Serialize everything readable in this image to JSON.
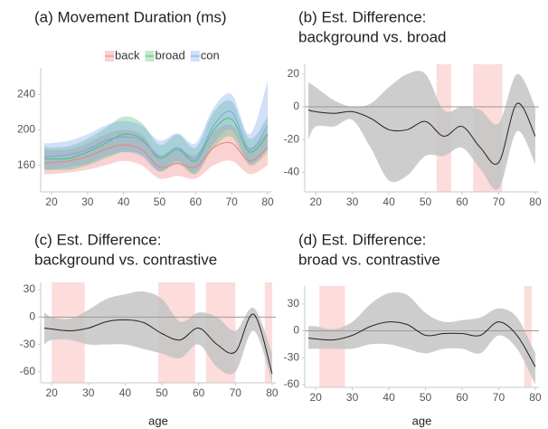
{
  "chart_data": [
    {
      "type": "line",
      "title": [
        "(a) Movement Duration (ms)"
      ],
      "legend": "top",
      "x": [
        18,
        20,
        25,
        30,
        35,
        40,
        45,
        50,
        55,
        60,
        65,
        70,
        75,
        80
      ],
      "xlim": [
        17,
        81
      ],
      "xticks": [
        20,
        30,
        40,
        50,
        60,
        70,
        80
      ],
      "ylim": [
        130,
        270
      ],
      "yticks": [
        160,
        200,
        240
      ],
      "series": [
        {
          "name": "back",
          "color": "#f07f7f",
          "values": [
            163,
            163,
            165,
            170,
            178,
            183,
            178,
            158,
            162,
            158,
            180,
            185,
            165,
            180
          ],
          "lower": [
            150,
            150,
            152,
            155,
            160,
            165,
            160,
            145,
            148,
            145,
            160,
            165,
            150,
            160
          ],
          "upper": [
            178,
            177,
            178,
            185,
            195,
            200,
            195,
            172,
            178,
            172,
            198,
            205,
            180,
            200
          ]
        },
        {
          "name": "broad",
          "color": "#4cbf73",
          "values": [
            168,
            167,
            168,
            175,
            185,
            195,
            190,
            168,
            178,
            165,
            200,
            212,
            175,
            195
          ],
          "lower": [
            155,
            155,
            155,
            160,
            168,
            175,
            172,
            153,
            162,
            150,
            180,
            192,
            160,
            175
          ],
          "upper": [
            182,
            180,
            182,
            190,
            202,
            215,
            208,
            183,
            195,
            180,
            220,
            232,
            190,
            215
          ]
        },
        {
          "name": "con",
          "color": "#7ba3ee",
          "values": [
            170,
            170,
            172,
            178,
            188,
            192,
            188,
            170,
            180,
            168,
            205,
            220,
            178,
            205
          ],
          "lower": [
            155,
            155,
            158,
            162,
            170,
            175,
            170,
            153,
            165,
            152,
            185,
            200,
            162,
            180
          ],
          "upper": [
            185,
            185,
            188,
            195,
            205,
            210,
            205,
            188,
            196,
            185,
            225,
            240,
            195,
            255
          ]
        }
      ]
    },
    {
      "type": "line",
      "title": [
        "(b) Est. Difference:",
        "background vs. broad"
      ],
      "x": [
        18,
        20,
        25,
        30,
        35,
        40,
        45,
        50,
        55,
        60,
        65,
        70,
        75,
        80
      ],
      "xlim": [
        17,
        81
      ],
      "xticks": [
        20,
        30,
        40,
        50,
        60,
        70,
        80
      ],
      "ylim": [
        -52,
        26
      ],
      "yticks": [
        20,
        0,
        -20,
        -40
      ],
      "hline": 0,
      "highlight_spans": [
        [
          53,
          57
        ],
        [
          63,
          71
        ]
      ],
      "highlight_color": "#fddcdc",
      "band_color": "#c4c4c4",
      "series": [
        {
          "color": "#222222",
          "values": [
            -2,
            -3,
            -4,
            -3,
            -7,
            -14,
            -14,
            -9,
            -18,
            -12,
            -25,
            -34,
            2,
            -18
          ],
          "lower": [
            -20,
            -12,
            -12,
            -8,
            -25,
            -45,
            -42,
            -30,
            -30,
            -25,
            -38,
            -50,
            -15,
            -35
          ],
          "upper": [
            15,
            12,
            4,
            0,
            2,
            12,
            20,
            20,
            -2,
            0,
            -2,
            -10,
            20,
            0
          ]
        }
      ]
    },
    {
      "type": "line",
      "title": [
        "(c) Est. Difference:",
        "background vs. contrastive"
      ],
      "xlabel": "age",
      "x": [
        18,
        20,
        25,
        30,
        35,
        40,
        45,
        50,
        55,
        60,
        65,
        70,
        75,
        80
      ],
      "xlim": [
        17,
        81
      ],
      "xticks": [
        20,
        30,
        40,
        50,
        60,
        70,
        80
      ],
      "ylim": [
        -72,
        38
      ],
      "yticks": [
        30,
        0,
        -30,
        -60
      ],
      "hline": 0,
      "highlight_spans": [
        [
          20,
          29
        ],
        [
          49,
          59
        ],
        [
          62,
          70
        ],
        [
          78,
          80
        ]
      ],
      "highlight_color": "#fddcdc",
      "band_color": "#c4c4c4",
      "series": [
        {
          "color": "#222222",
          "values": [
            -12,
            -13,
            -15,
            -12,
            -5,
            -3,
            -6,
            -18,
            -25,
            -12,
            -30,
            -38,
            3,
            -62
          ],
          "lower": [
            -30,
            -25,
            -25,
            -30,
            -30,
            -30,
            -35,
            -40,
            -45,
            -30,
            -55,
            -60,
            -15,
            -72
          ],
          "upper": [
            5,
            0,
            -2,
            8,
            20,
            25,
            28,
            20,
            -5,
            5,
            0,
            -15,
            10,
            -40
          ]
        }
      ]
    },
    {
      "type": "line",
      "title": [
        "(d) Est. Difference:",
        "broad vs. contrastive"
      ],
      "xlabel": "age",
      "x": [
        18,
        20,
        25,
        30,
        35,
        40,
        45,
        50,
        55,
        60,
        65,
        70,
        75,
        80
      ],
      "xlim": [
        17,
        81
      ],
      "xticks": [
        20,
        30,
        40,
        50,
        60,
        70,
        80
      ],
      "ylim": [
        -63,
        50
      ],
      "yticks": [
        30,
        0,
        -30,
        -60
      ],
      "hline": 0,
      "highlight_spans": [
        [
          21,
          28
        ],
        [
          77,
          79
        ]
      ],
      "highlight_color": "#fddcdc",
      "band_color": "#c4c4c4",
      "series": [
        {
          "color": "#222222",
          "values": [
            -8,
            -9,
            -10,
            -5,
            5,
            10,
            7,
            -5,
            -3,
            -3,
            -5,
            10,
            -5,
            -40
          ],
          "lower": [
            -20,
            -20,
            -20,
            -20,
            -15,
            -15,
            -20,
            -25,
            -20,
            -20,
            -25,
            -5,
            -20,
            -60
          ],
          "upper": [
            5,
            5,
            2,
            10,
            30,
            42,
            40,
            20,
            10,
            12,
            15,
            25,
            15,
            -25
          ]
        }
      ]
    }
  ]
}
